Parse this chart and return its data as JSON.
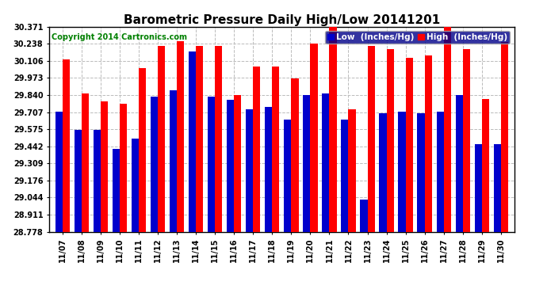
{
  "title": "Barometric Pressure Daily High/Low 20141201",
  "copyright": "Copyright 2014 Cartronics.com",
  "legend_low": "Low  (Inches/Hg)",
  "legend_high": "High  (Inches/Hg)",
  "dates": [
    "11/07",
    "11/08",
    "11/09",
    "11/10",
    "11/11",
    "11/12",
    "11/13",
    "11/14",
    "11/15",
    "11/16",
    "11/17",
    "11/18",
    "11/19",
    "11/20",
    "11/21",
    "11/22",
    "11/23",
    "11/24",
    "11/25",
    "11/26",
    "11/27",
    "11/28",
    "11/29",
    "11/30"
  ],
  "low": [
    29.71,
    29.57,
    29.57,
    29.42,
    29.5,
    29.83,
    29.88,
    30.18,
    29.83,
    29.8,
    29.73,
    29.75,
    29.65,
    29.84,
    29.85,
    29.65,
    29.03,
    29.7,
    29.71,
    29.7,
    29.71,
    29.84,
    29.46,
    29.46
  ],
  "high": [
    30.12,
    29.85,
    29.79,
    29.77,
    30.05,
    30.22,
    30.26,
    30.22,
    30.22,
    29.84,
    30.06,
    30.06,
    29.97,
    30.24,
    30.37,
    29.73,
    30.22,
    30.2,
    30.13,
    30.15,
    30.37,
    30.2,
    29.81,
    30.25
  ],
  "ymin": 28.778,
  "ymax": 30.371,
  "yticks": [
    28.778,
    28.911,
    29.044,
    29.176,
    29.309,
    29.442,
    29.575,
    29.707,
    29.84,
    29.973,
    30.106,
    30.238,
    30.371
  ],
  "low_color": "#0000cc",
  "high_color": "#ff0000",
  "bg_color": "#ffffff",
  "plot_bg_color": "#ffffff",
  "grid_color": "#bbbbbb",
  "title_fontsize": 11,
  "copyright_fontsize": 7,
  "legend_fontsize": 7.5,
  "bar_width": 0.38
}
